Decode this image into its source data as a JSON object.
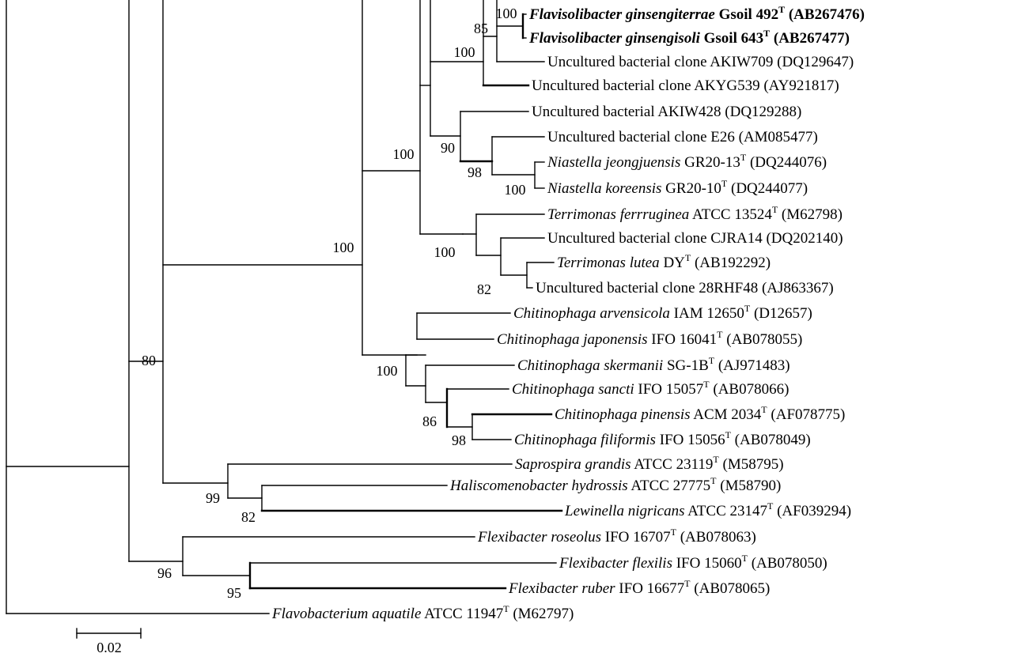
{
  "taxa": [
    {
      "id": "t1",
      "bold": true,
      "parts": [
        {
          "t": "Flavisolibacter ginsengiterrae",
          "i": true
        },
        {
          "t": " Gsoil 492"
        },
        {
          "t": "T",
          "sup": true
        },
        {
          "t": " (AB267476)"
        }
      ]
    },
    {
      "id": "t2",
      "bold": true,
      "parts": [
        {
          "t": "Flavisolibacter ginsengisoli",
          "i": true
        },
        {
          "t": " Gsoil 643"
        },
        {
          "t": "T",
          "sup": true
        },
        {
          "t": " (AB267477)"
        }
      ]
    },
    {
      "id": "t3",
      "parts": [
        {
          "t": "Uncultured bacterial clone AKIW709 (DQ129647)"
        }
      ]
    },
    {
      "id": "t4",
      "parts": [
        {
          "t": "Uncultured bacterial clone AKYG539 (AY921817)"
        }
      ]
    },
    {
      "id": "t5",
      "parts": [
        {
          "t": "Uncultured bacterial AKIW428 (DQ129288)"
        }
      ]
    },
    {
      "id": "t6",
      "parts": [
        {
          "t": "Uncultured bacterial clone E26 (AM085477)"
        }
      ]
    },
    {
      "id": "t7",
      "parts": [
        {
          "t": "Niastella jeongjuensis",
          "i": true
        },
        {
          "t": " GR20-13"
        },
        {
          "t": "T",
          "sup": true
        },
        {
          "t": " (DQ244076)"
        }
      ]
    },
    {
      "id": "t8",
      "parts": [
        {
          "t": "Niastella koreensis",
          "i": true
        },
        {
          "t": " GR20-10"
        },
        {
          "t": "T",
          "sup": true
        },
        {
          "t": " (DQ244077)"
        }
      ]
    },
    {
      "id": "t9",
      "parts": [
        {
          "t": "Terrimonas ferrruginea",
          "i": true
        },
        {
          "t": " ATCC 13524"
        },
        {
          "t": "T",
          "sup": true
        },
        {
          "t": " (M62798)"
        }
      ]
    },
    {
      "id": "t10",
      "parts": [
        {
          "t": "Uncultured bacterial clone CJRA14 (DQ202140)"
        }
      ]
    },
    {
      "id": "t11",
      "parts": [
        {
          "t": "Terrimonas lutea",
          "i": true
        },
        {
          "t": " DY"
        },
        {
          "t": "T",
          "sup": true
        },
        {
          "t": " (AB192292)"
        }
      ]
    },
    {
      "id": "t12",
      "parts": [
        {
          "t": "Uncultured bacterial clone 28RHF48 (AJ863367)"
        }
      ]
    },
    {
      "id": "t13",
      "parts": [
        {
          "t": "Chitinophaga arvensicola",
          "i": true
        },
        {
          "t": " IAM 12650"
        },
        {
          "t": "T",
          "sup": true
        },
        {
          "t": " (D12657)"
        }
      ]
    },
    {
      "id": "t14",
      "parts": [
        {
          "t": "Chitinophaga japonensis",
          "i": true
        },
        {
          "t": " IFO 16041"
        },
        {
          "t": "T",
          "sup": true
        },
        {
          "t": " (AB078055)"
        }
      ]
    },
    {
      "id": "t15",
      "parts": [
        {
          "t": "Chitinophaga skermanii",
          "i": true
        },
        {
          "t": " SG-1B"
        },
        {
          "t": "T",
          "sup": true
        },
        {
          "t": " (AJ971483)"
        }
      ]
    },
    {
      "id": "t16",
      "parts": [
        {
          "t": "Chitinophaga sancti",
          "i": true
        },
        {
          "t": " IFO 15057"
        },
        {
          "t": "T",
          "sup": true
        },
        {
          "t": " (AB078066)"
        }
      ]
    },
    {
      "id": "t17",
      "parts": [
        {
          "t": "Chitinophaga pinensis",
          "i": true
        },
        {
          "t": " ACM 2034"
        },
        {
          "t": "T",
          "sup": true
        },
        {
          "t": " (AF078775)"
        }
      ]
    },
    {
      "id": "t18",
      "parts": [
        {
          "t": "Chitinophaga filiformis",
          "i": true
        },
        {
          "t": " IFO 15056"
        },
        {
          "t": "T",
          "sup": true
        },
        {
          "t": " (AB078049)"
        }
      ]
    },
    {
      "id": "t19",
      "parts": [
        {
          "t": "Saprospira grandis",
          "i": true
        },
        {
          "t": " ATCC 23119"
        },
        {
          "t": "T",
          "sup": true
        },
        {
          "t": " (M58795)"
        }
      ]
    },
    {
      "id": "t20",
      "parts": [
        {
          "t": "Haliscomenobacter hydrossis",
          "i": true
        },
        {
          "t": " ATCC 27775"
        },
        {
          "t": "T",
          "sup": true
        },
        {
          "t": " (M58790)"
        }
      ]
    },
    {
      "id": "t21",
      "parts": [
        {
          "t": "Lewinella nigricans",
          "i": true
        },
        {
          "t": " ATCC 23147"
        },
        {
          "t": "T",
          "sup": true
        },
        {
          "t": " (AF039294)"
        }
      ]
    },
    {
      "id": "t22",
      "parts": [
        {
          "t": "Flexibacter roseolus",
          "i": true
        },
        {
          "t": " IFO 16707"
        },
        {
          "t": "T",
          "sup": true
        },
        {
          "t": " (AB078063)"
        }
      ]
    },
    {
      "id": "t23",
      "parts": [
        {
          "t": "Flexibacter flexilis",
          "i": true
        },
        {
          "t": " IFO 15060"
        },
        {
          "t": "T",
          "sup": true
        },
        {
          "t": " (AB078050)"
        }
      ]
    },
    {
      "id": "t24",
      "parts": [
        {
          "t": "Flexibacter ruber",
          "i": true
        },
        {
          "t": " IFO 16677"
        },
        {
          "t": "T",
          "sup": true
        },
        {
          "t": " (AB078065)"
        }
      ]
    },
    {
      "id": "t25",
      "parts": [
        {
          "t": "Flavobacterium aquatile",
          "i": true
        },
        {
          "t": " ATCC 11947"
        },
        {
          "t": "T",
          "sup": true
        },
        {
          "t": " (M62797)"
        }
      ]
    }
  ],
  "bootstrap": [
    {
      "id": "b1",
      "value": "100"
    },
    {
      "id": "b2",
      "value": "85"
    },
    {
      "id": "b3",
      "value": "100"
    },
    {
      "id": "b4",
      "value": "90"
    },
    {
      "id": "b5",
      "value": "98"
    },
    {
      "id": "b6",
      "value": "100"
    },
    {
      "id": "b7",
      "value": "100"
    },
    {
      "id": "b8",
      "value": "100"
    },
    {
      "id": "b9",
      "value": "82"
    },
    {
      "id": "b10",
      "value": "100"
    },
    {
      "id": "b11",
      "value": "100"
    },
    {
      "id": "b12",
      "value": "86"
    },
    {
      "id": "b13",
      "value": "98"
    },
    {
      "id": "b14",
      "value": "80"
    },
    {
      "id": "b15",
      "value": "99"
    },
    {
      "id": "b16",
      "value": "82"
    },
    {
      "id": "b17",
      "value": "96"
    },
    {
      "id": "b18",
      "value": "95"
    }
  ],
  "scale": {
    "label": "0.02"
  }
}
